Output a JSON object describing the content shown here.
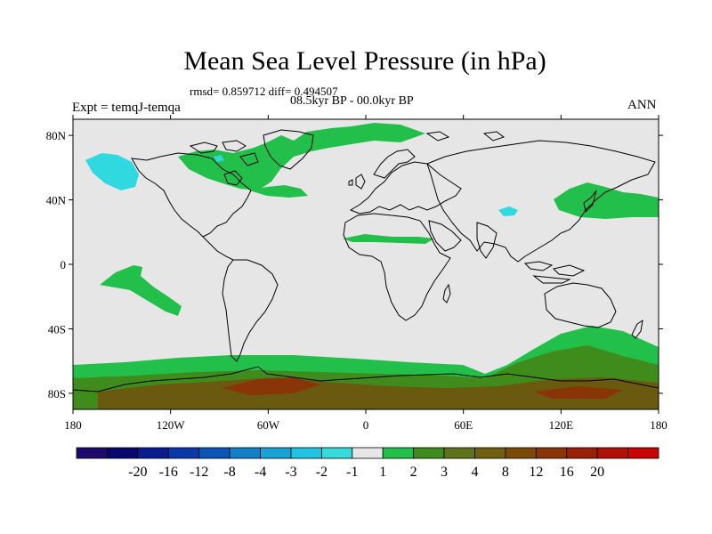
{
  "header": {
    "title": "Mean Sea Level Pressure (in hPa)",
    "stats": "rmsd= 0.859712 diff= 0.494507",
    "period": "08.5kyr BP - 00.0kyr BP",
    "experiment": "Expt = temqJ-temqa",
    "season": "ANN"
  },
  "map": {
    "projection": "cylindrical-equidistant",
    "lon_range": [
      -180,
      180
    ],
    "lat_range": [
      -90,
      90
    ],
    "background_color": "#e6e6e6",
    "lat_ticks": [
      "80N",
      "40N",
      "0",
      "40S",
      "80S"
    ],
    "lon_ticks": [
      "180",
      "120W",
      "60W",
      "0",
      "60E",
      "120E",
      "180"
    ]
  },
  "colorbar": {
    "colors": [
      "#1e0a6a",
      "#07076e",
      "#0a1c90",
      "#0a38a8",
      "#0b55b8",
      "#1280c8",
      "#18a2d6",
      "#20c4e0",
      "#36dcdc",
      "#e6e6e6",
      "#22c04a",
      "#3f8c1c",
      "#5f731c",
      "#6f5f10",
      "#7a4a08",
      "#8a3508",
      "#9a2008",
      "#b01008",
      "#c80505"
    ],
    "labels": [
      "-20",
      "-16",
      "-12",
      "-8",
      "-4",
      "-3",
      "-2",
      "-1",
      "1",
      "2",
      "3",
      "4",
      "8",
      "12",
      "16",
      "20"
    ]
  },
  "anomaly_colors": {
    "positive_light": "#22c04a",
    "positive_medium": "#3f8c1c",
    "positive_strong": "#6a5a10",
    "positive_max": "#8a3508",
    "negative_light": "#30d8e0"
  }
}
